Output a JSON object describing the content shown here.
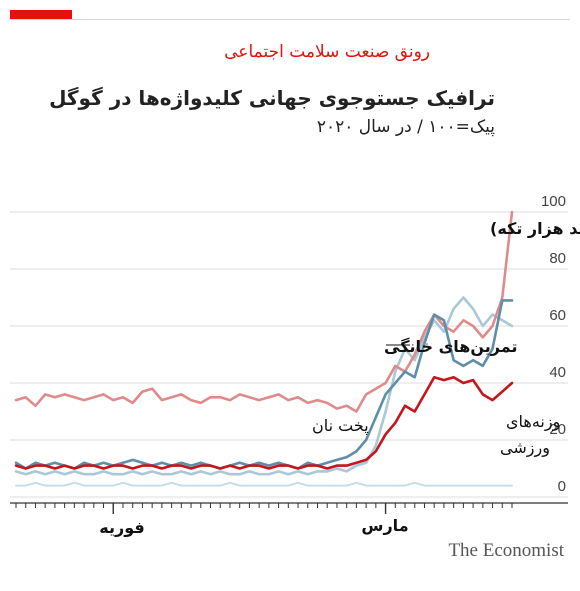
{
  "header": {
    "kicker": "رونق صنعت سلامت اجتماعی",
    "title": "ترافیک جستوجوی جهانی کلیدواژه‌ها در گوگل",
    "subtitle": "پیک=۱۰۰  /  در سال ۲۰۲۰"
  },
  "brand": "The Economist",
  "colors": {
    "accent": "#e3120b",
    "jigsaw": "#e08a8a",
    "home_workout": "#5e8ea8",
    "dumbbells": "#c4161c",
    "bread": "#a9c8d8",
    "other": "#c7dde8"
  },
  "chart_data": {
    "type": "line",
    "ylim": [
      0,
      100
    ],
    "yticks": [
      "0",
      "20",
      "40",
      "60",
      "80",
      "100"
    ],
    "xtick_labels": [
      {
        "label": "فوریه",
        "index": 10
      },
      {
        "label": "مارس",
        "index": 38
      }
    ],
    "grid": true,
    "series": [
      {
        "name": "جیگساو(پازل‌های چند هزار تکه)",
        "color": "#e08a8a",
        "values": [
          34,
          35,
          32,
          36,
          35,
          36,
          35,
          34,
          35,
          36,
          34,
          35,
          33,
          37,
          38,
          34,
          35,
          36,
          34,
          33,
          35,
          35,
          34,
          36,
          35,
          34,
          35,
          36,
          34,
          35,
          33,
          34,
          33,
          31,
          32,
          30,
          36,
          38,
          40,
          46,
          44,
          50,
          58,
          64,
          60,
          58,
          62,
          60,
          56,
          60,
          70,
          100
        ]
      },
      {
        "name": "تمرین‌های خانگی",
        "color": "#5e8ea8",
        "values": [
          12,
          10,
          12,
          11,
          12,
          11,
          10,
          12,
          11,
          12,
          11,
          12,
          13,
          12,
          11,
          12,
          11,
          12,
          11,
          12,
          11,
          10,
          11,
          12,
          11,
          12,
          11,
          12,
          11,
          10,
          12,
          11,
          12,
          13,
          14,
          16,
          20,
          28,
          36,
          40,
          44,
          42,
          54,
          64,
          62,
          48,
          46,
          48,
          46,
          52,
          69,
          69
        ]
      },
      {
        "name": "وزنه‌های ورزشی",
        "color": "#c4161c",
        "values": [
          11,
          10,
          11,
          11,
          10,
          11,
          10,
          11,
          11,
          10,
          11,
          11,
          10,
          11,
          11,
          10,
          11,
          11,
          10,
          11,
          11,
          10,
          11,
          10,
          11,
          11,
          10,
          11,
          11,
          10,
          11,
          11,
          10,
          11,
          11,
          12,
          13,
          16,
          22,
          26,
          32,
          30,
          36,
          42,
          41,
          42,
          40,
          41,
          36,
          34,
          37,
          40
        ]
      },
      {
        "name": "پخت نان",
        "color": "#a9c8d8",
        "values": [
          9,
          8,
          9,
          8,
          9,
          8,
          9,
          8,
          8,
          9,
          8,
          8,
          9,
          8,
          9,
          8,
          8,
          9,
          8,
          9,
          8,
          9,
          8,
          8,
          9,
          8,
          8,
          9,
          8,
          9,
          8,
          9,
          9,
          10,
          9,
          11,
          12,
          18,
          30,
          44,
          52,
          48,
          56,
          62,
          58,
          66,
          70,
          66,
          60,
          64,
          62,
          60
        ]
      },
      {
        "name": "",
        "color": "#c7dde8",
        "values": [
          4,
          4,
          5,
          4,
          4,
          4,
          5,
          4,
          4,
          4,
          4,
          5,
          4,
          4,
          4,
          4,
          5,
          4,
          4,
          4,
          4,
          4,
          5,
          4,
          4,
          4,
          4,
          4,
          4,
          5,
          4,
          4,
          4,
          4,
          4,
          5,
          4,
          4,
          4,
          4,
          4,
          5,
          4,
          4,
          4,
          4,
          4,
          4,
          4,
          4,
          4,
          4
        ]
      }
    ],
    "annotations": [
      {
        "text": "جیگساو(پازل‌های چند هزار تکه)",
        "series": 0
      },
      {
        "text": "تمرین‌های خانگی",
        "series": 1
      },
      {
        "text": "وزنه‌های",
        "series": 2
      },
      {
        "text": "ورزشی",
        "series": 2
      },
      {
        "text": "پخت نان",
        "series": 3
      }
    ]
  }
}
